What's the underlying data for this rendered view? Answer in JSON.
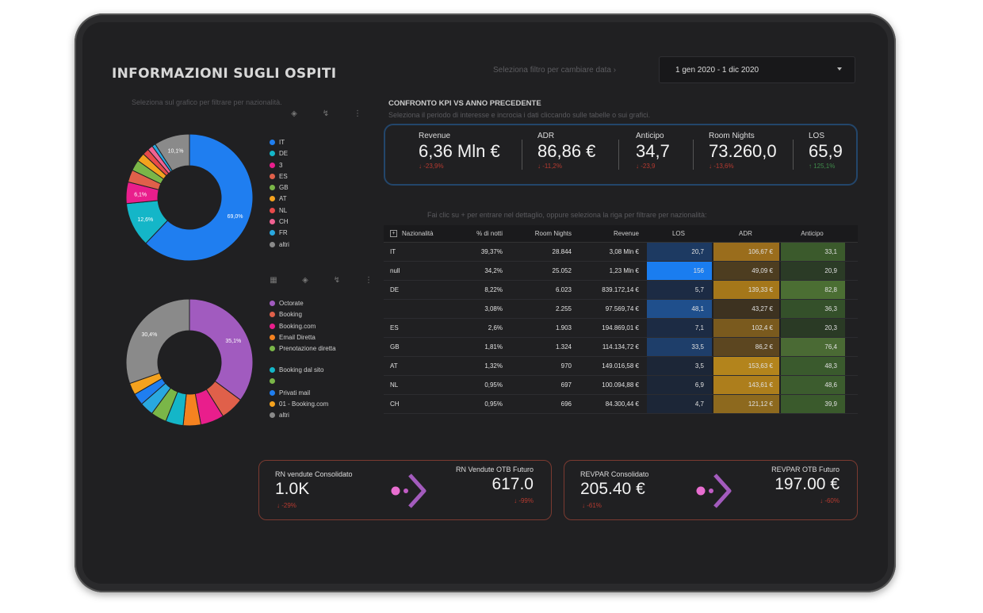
{
  "header": {
    "title": "INFORMAZIONI SUGLI OSPITI",
    "filter_label": "Seleziona filtro per cambiare data ›",
    "date_range": "1 gen 2020 - 1 dic 2020"
  },
  "left": {
    "hint": "Seleziona sul grafico per filtrare per nazionalità."
  },
  "donut1": {
    "labels_shown": [
      "69,0%",
      "12,6%",
      "6,1%",
      "10,1%"
    ],
    "legend": [
      {
        "label": "IT",
        "color": "#1f7ef0"
      },
      {
        "label": "DE",
        "color": "#14b6c8"
      },
      {
        "label": "3",
        "color": "#e91e8c"
      },
      {
        "label": "ES",
        "color": "#e0604a"
      },
      {
        "label": "GB",
        "color": "#7ab648"
      },
      {
        "label": "AT",
        "color": "#f4a21e"
      },
      {
        "label": "NL",
        "color": "#e84a4a"
      },
      {
        "label": "CH",
        "color": "#f06292"
      },
      {
        "label": "FR",
        "color": "#29a8e0"
      },
      {
        "label": "altri",
        "color": "#8a8a8a"
      }
    ],
    "slices": [
      {
        "name": "IT",
        "value": 69.0,
        "color": "#1f7ef0"
      },
      {
        "name": "DE",
        "value": 12.6,
        "color": "#14b6c8"
      },
      {
        "name": "3",
        "value": 6.1,
        "color": "#e91e8c"
      },
      {
        "name": "ES",
        "value": 3.5,
        "color": "#e0604a"
      },
      {
        "name": "GB",
        "value": 3.1,
        "color": "#7ab648"
      },
      {
        "name": "AT",
        "value": 2.4,
        "color": "#f4a21e"
      },
      {
        "name": "NL",
        "value": 1.8,
        "color": "#e84a4a"
      },
      {
        "name": "CH",
        "value": 1.5,
        "color": "#f06292"
      },
      {
        "name": "FR",
        "value": 1.0,
        "color": "#29a8e0"
      },
      {
        "name": "altri",
        "value": 10.1,
        "color": "#8a8a8a"
      }
    ]
  },
  "donut2": {
    "labels_shown": [
      "35,1%",
      "30,4%"
    ],
    "legend": [
      {
        "label": "Octorate",
        "color": "#a15bbf"
      },
      {
        "label": "Booking",
        "color": "#e0604a"
      },
      {
        "label": "Booking.com",
        "color": "#e91e8c"
      },
      {
        "label": "Email Diretta",
        "color": "#f58220"
      },
      {
        "label": "Prenotazione diretta",
        "color": "#7ab648"
      },
      {
        "label": "Booking dal sito",
        "color": "#14b6c8"
      },
      {
        "label": "",
        "color": "#7ab648"
      },
      {
        "label": "Privati mail",
        "color": "#1f7ef0"
      },
      {
        "label": "01 - Booking.com",
        "color": "#f4a21e"
      },
      {
        "label": "altri",
        "color": "#8a8a8a"
      }
    ],
    "slices": [
      {
        "name": "Octorate",
        "value": 35.1,
        "color": "#a15bbf"
      },
      {
        "name": "Booking",
        "value": 6.0,
        "color": "#e0604a"
      },
      {
        "name": "Booking.com",
        "value": 6.0,
        "color": "#e91e8c"
      },
      {
        "name": "Email Diretta",
        "value": 4.5,
        "color": "#f58220"
      },
      {
        "name": "Prenotazione diretta",
        "value": 4.5,
        "color": "#14b6c8"
      },
      {
        "name": "Booking dal sito",
        "value": 4.0,
        "color": "#7ab648"
      },
      {
        "name": "",
        "value": 3.5,
        "color": "#29a8e0"
      },
      {
        "name": "Privati mail",
        "value": 3.0,
        "color": "#1f7ef0"
      },
      {
        "name": "01 - Booking.com",
        "value": 3.0,
        "color": "#f4a21e"
      },
      {
        "name": "altri",
        "value": 30.4,
        "color": "#8a8a8a"
      }
    ]
  },
  "kpi": {
    "heading": "CONFRONTO KPI VS ANNO PRECEDENTE",
    "subheading": "Seleziona il periodo di interesse e incrocia i dati cliccando sulle tabelle o sui grafici.",
    "items": [
      {
        "label": "Revenue",
        "value": "6,36 Mln €",
        "change": "↓ -23,9%"
      },
      {
        "label": "ADR",
        "value": "86,86 €",
        "change": "↓ -11,2%"
      },
      {
        "label": "Anticipo",
        "value": "34,7",
        "change": "↓ -23,9"
      },
      {
        "label": "Room Nights",
        "value": "73.260,0",
        "change": "↓ -13,6%"
      },
      {
        "label": "LOS",
        "value": "65,9",
        "change": "↑ 125,1%"
      }
    ]
  },
  "table": {
    "hint": "Fai clic su + per entrare nel dettaglio, oppure seleziona la riga per filtrare per nazionalità:",
    "headers": [
      "Nazionalità",
      "% di notti",
      "Room Nights",
      "Revenue",
      "LOS",
      "ADR",
      "Anticipo"
    ],
    "rows": [
      [
        "IT",
        "39,37%",
        "28.844",
        "3,08 Mln €",
        "20,7",
        "106,67 €",
        "33,1"
      ],
      [
        "null",
        "34,2%",
        "25.052",
        "1,23 Mln €",
        "156",
        "49,09 €",
        "20,9"
      ],
      [
        "DE",
        "8,22%",
        "6.023",
        "839.172,14 €",
        "5,7",
        "139,33 €",
        "82,8"
      ],
      [
        "",
        "3,08%",
        "2.255",
        "97.569,74 €",
        "48,1",
        "43,27 €",
        "36,3"
      ],
      [
        "ES",
        "2,6%",
        "1.903",
        "194.869,01 €",
        "7,1",
        "102,4 €",
        "20,3"
      ],
      [
        "GB",
        "1,81%",
        "1.324",
        "114.134,72 €",
        "33,5",
        "86,2 €",
        "76,4"
      ],
      [
        "AT",
        "1,32%",
        "970",
        "149.016,58 €",
        "3,5",
        "153,63 €",
        "48,3"
      ],
      [
        "NL",
        "0,95%",
        "697",
        "100.094,88 €",
        "6,9",
        "143,61 €",
        "48,6"
      ],
      [
        "CH",
        "0,95%",
        "696",
        "84.300,44 €",
        "4,7",
        "121,12 €",
        "39,9"
      ]
    ],
    "los_colors": [
      "#1d3a62",
      "#1a7df0",
      "#1c2b44",
      "#1f4f8c",
      "#1c2b44",
      "#1e3e6a",
      "#1c2637",
      "#1c2637",
      "#1c2637"
    ],
    "adr_colors": [
      "#9a6d1c",
      "#4d3d20",
      "#a5771a",
      "#3d3220",
      "#7a5a1e",
      "#5c4620",
      "#b3841c",
      "#ad7e1c",
      "#8d691e"
    ],
    "ant_colors": [
      "#3b5a2c",
      "#2b3b26",
      "#4b6e33",
      "#34502a",
      "#2a3a25",
      "#4a6a34",
      "#3a5a2d",
      "#3c5c2e",
      "#3a5a2c"
    ]
  },
  "cards": [
    {
      "left_label": "RN vendute Consolidato",
      "left_value": "1.0K",
      "left_change": "↓ -29%",
      "right_label": "RN Vendute OTB Futuro",
      "right_value": "617.0",
      "right_change": "↓ -99%"
    },
    {
      "left_label": "REVPAR Consolidato",
      "left_value": "205.40 €",
      "left_change": "↓ -61%",
      "right_label": "REVPAR OTB Futuro",
      "right_value": "197.00 €",
      "right_change": "↓ -60%"
    }
  ]
}
